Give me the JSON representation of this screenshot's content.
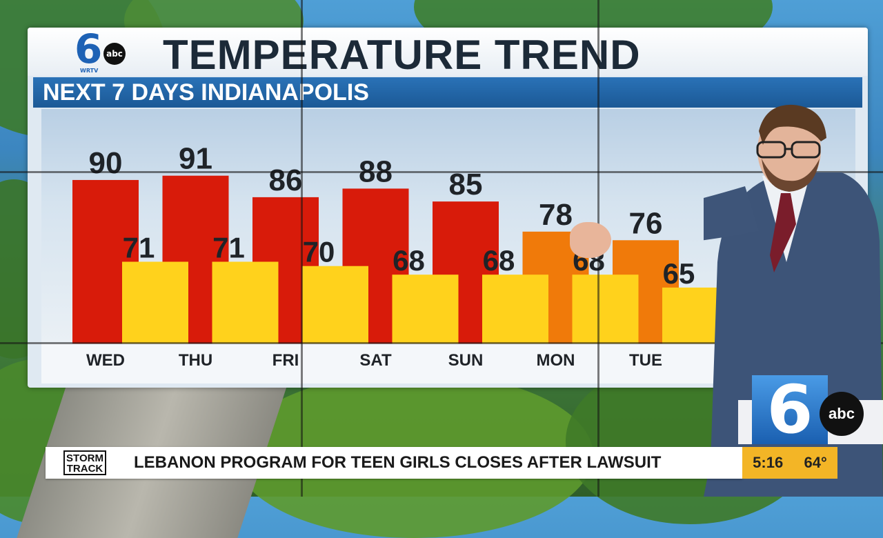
{
  "header": {
    "title": "TEMPERATURE TREND",
    "subtitle": "NEXT 7 DAYS INDIANAPOLIS",
    "logo_number": "6",
    "logo_network": "abc",
    "logo_station": "WRTV"
  },
  "colors": {
    "high_hot": "#d81b0a",
    "high_warm": "#f07a0a",
    "low": "#ffd21c",
    "label": "#1f2328"
  },
  "chart_data": {
    "type": "bar",
    "categories": [
      "WED",
      "THU",
      "FRI",
      "SAT",
      "SUN",
      "MON",
      "TUE"
    ],
    "series": [
      {
        "values": [
          90,
          91,
          86,
          88,
          85,
          78,
          76
        ]
      },
      {
        "values": [
          71,
          71,
          70,
          68,
          68,
          68,
          65
        ]
      }
    ],
    "title": "TEMPERATURE TREND",
    "subtitle": "NEXT 7 DAYS INDIANAPOLIS",
    "ylim": [
      52,
      94
    ]
  },
  "ticker": {
    "brand_line1": "STORM",
    "brand_line2": "TRACK",
    "headline": "LEBANON PROGRAM FOR TEEN GIRLS CLOSES AFTER LAWSUIT",
    "time": "5:16",
    "temperature": "64°"
  },
  "corner_logo": {
    "number": "6",
    "network": "abc"
  }
}
